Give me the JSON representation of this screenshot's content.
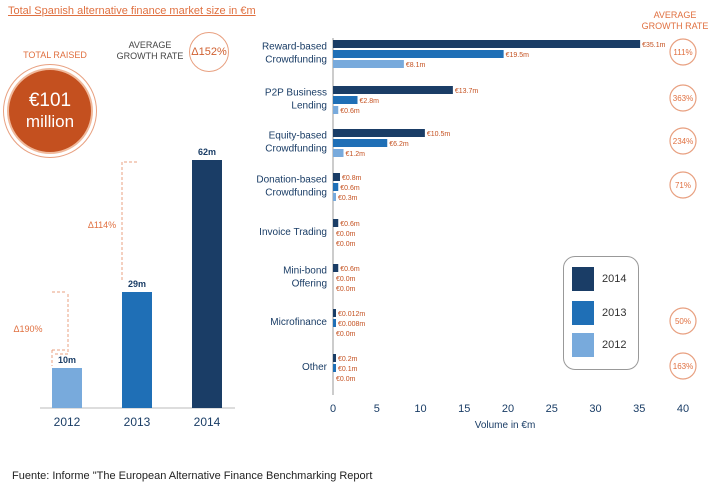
{
  "title": "Total Spanish alternative finance market size in €m",
  "left": {
    "total_raised_label": "TOTAL RAISED",
    "total_value_line1": "€101",
    "total_value_line2": "million",
    "avg_growth_label_l1": "AVERAGE",
    "avg_growth_label_l2": "GROWTH RATE",
    "avg_growth_value": "Δ152%",
    "growth_2012_2013": "Δ190%",
    "growth_2013_2014": "Δ114%"
  },
  "right_header": {
    "l1": "AVERAGE",
    "l2": "GROWTH RATE"
  },
  "colors": {
    "y2014": "#1a3d66",
    "y2013": "#1f6fb6",
    "y2012": "#78aadc",
    "accent": "#e07040"
  },
  "footer": "Fuente: Informe \"The European Alternative Finance Benchmarking Report",
  "legend": [
    "2014",
    "2013",
    "2012"
  ],
  "chart_data": [
    {
      "type": "bar",
      "categories": [
        "2012",
        "2013",
        "2014"
      ],
      "values": [
        10,
        29,
        62
      ],
      "labels": [
        "10m",
        "29m",
        "62m"
      ]
    },
    {
      "type": "bar",
      "orientation": "horizontal",
      "xlabel": "Volume in €m",
      "xlim": [
        0,
        40
      ],
      "xticks": [
        0,
        5,
        10,
        15,
        20,
        25,
        30,
        35,
        40
      ],
      "categories": [
        [
          "Reward-based",
          "Crowdfunding"
        ],
        [
          "P2P Business",
          "Lending"
        ],
        [
          "Equity-based",
          "Crowdfunding"
        ],
        [
          "Donation-based",
          "Crowdfunding"
        ],
        [
          "Invoice Trading"
        ],
        [
          "Mini-bond",
          "Offering"
        ],
        [
          "Microfinance"
        ],
        [
          "Other"
        ]
      ],
      "series": [
        {
          "name": "2014",
          "values": [
            35.1,
            13.7,
            10.5,
            0.8,
            0.6,
            0.6,
            0.012,
            0.2
          ],
          "labels": [
            "€35.1m",
            "€13.7m",
            "€10.5m",
            "€0.8m",
            "€0.6m",
            "€0.6m",
            "€0.012m",
            "€0.2m"
          ]
        },
        {
          "name": "2013",
          "values": [
            19.5,
            2.8,
            6.2,
            0.6,
            0.0,
            0.0,
            0.008,
            0.1
          ],
          "labels": [
            "€19.5m",
            "€2.8m",
            "€6.2m",
            "€0.6m",
            "€0.0m",
            "€0.0m",
            "€0.008m",
            "€0.1m"
          ]
        },
        {
          "name": "2012",
          "values": [
            8.1,
            0.6,
            1.2,
            0.3,
            0.0,
            0.0,
            0.0,
            0.0
          ],
          "labels": [
            "€8.1m",
            "€0.6m",
            "€1.2m",
            "€0.3m",
            "€0.0m",
            "€0.0m",
            "€0.0m",
            "€0.0m"
          ]
        }
      ],
      "growth_rates": [
        "111%",
        "363%",
        "234%",
        "71%",
        "",
        "",
        "50%",
        "163%"
      ]
    }
  ]
}
